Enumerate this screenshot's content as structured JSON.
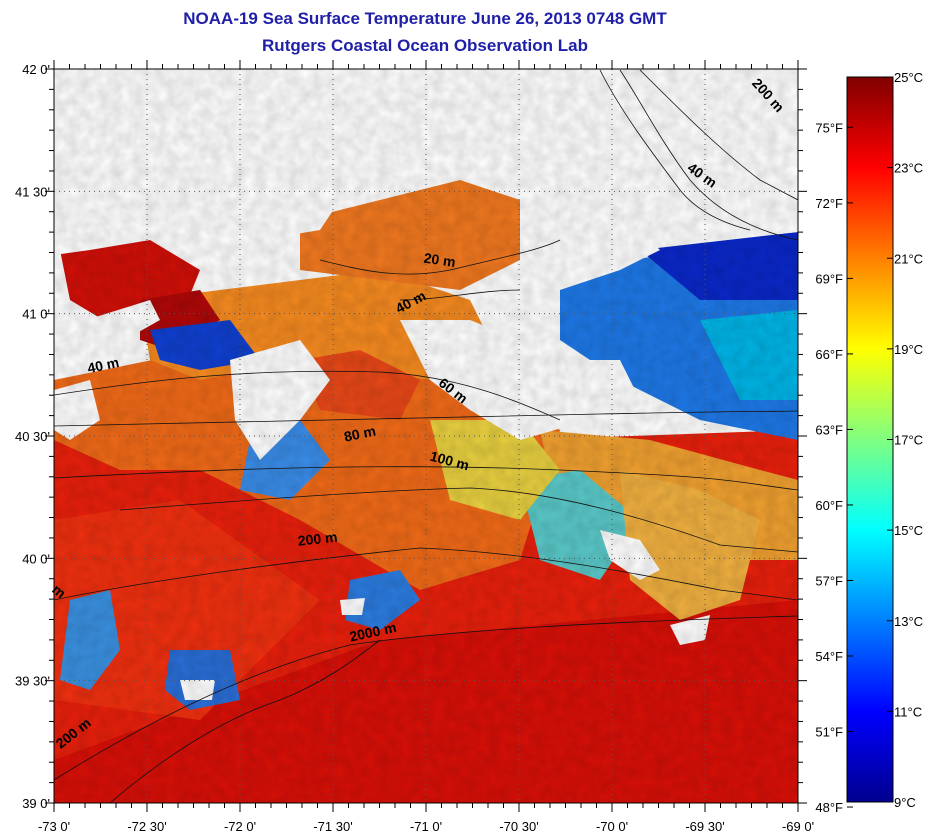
{
  "title": "NOAA-19 Sea Surface Temperature June 26, 2013 0748 GMT",
  "subtitle": "Rutgers Coastal Ocean Observation Lab",
  "map": {
    "lon_labels": [
      "-73 0'",
      "-72 30'",
      "-72 0'",
      "-71 30'",
      "-71 0'",
      "-70 30'",
      "-70 0'",
      "-69 30'",
      "-69 0'"
    ],
    "lat_labels": [
      "42 0'",
      "41 30'",
      "41 0'",
      "40 30'",
      "40 0'",
      "39 30'",
      "39 0'"
    ],
    "lon_range": [
      -73,
      -69
    ],
    "lat_range": [
      39,
      42
    ],
    "grid": "dotted",
    "isobath_labels": [
      {
        "text": "200 m",
        "lon": -69.18,
        "lat": 41.88,
        "rot": 48
      },
      {
        "text": "40 m",
        "lon": -69.53,
        "lat": 41.55,
        "rot": 35
      },
      {
        "text": "20 m",
        "lon": -70.93,
        "lat": 41.2,
        "rot": 8
      },
      {
        "text": "40 m",
        "lon": -71.07,
        "lat": 41.03,
        "rot": -28
      },
      {
        "text": "40 m",
        "lon": -72.73,
        "lat": 40.77,
        "rot": -12
      },
      {
        "text": "60 m",
        "lon": -70.87,
        "lat": 40.67,
        "rot": 38
      },
      {
        "text": "80 m",
        "lon": -71.35,
        "lat": 40.49,
        "rot": -12
      },
      {
        "text": "100 m",
        "lon": -70.88,
        "lat": 40.38,
        "rot": 15
      },
      {
        "text": "200 m",
        "lon": -71.58,
        "lat": 40.06,
        "rot": -6
      },
      {
        "text": "2000 m",
        "lon": -71.28,
        "lat": 39.68,
        "rot": -12
      },
      {
        "text": "200 m",
        "lon": -72.88,
        "lat": 39.27,
        "rot": -38
      },
      {
        "text": "m",
        "lon": -72.99,
        "lat": 39.85,
        "rot": 40
      }
    ]
  },
  "colorbar": {
    "celsius_labels": [
      "25°C",
      "23°C",
      "21°C",
      "19°C",
      "17°C",
      "15°C",
      "13°C",
      "11°C",
      "9°C"
    ],
    "celsius_values": [
      25,
      23,
      21,
      19,
      17,
      15,
      13,
      11,
      9
    ],
    "fahrenheit_labels": [
      "75°F",
      "72°F",
      "69°F",
      "66°F",
      "63°F",
      "60°F",
      "57°F",
      "54°F",
      "51°F",
      "48°F"
    ],
    "fahrenheit_values": [
      75,
      72,
      69,
      66,
      63,
      60,
      57,
      54,
      51,
      48
    ],
    "range_c": [
      9,
      25
    ],
    "colors": [
      "#00008f",
      "#0000ff",
      "#0080ff",
      "#00ffff",
      "#80ff80",
      "#ffff00",
      "#ff8000",
      "#ff0000",
      "#800000"
    ]
  }
}
